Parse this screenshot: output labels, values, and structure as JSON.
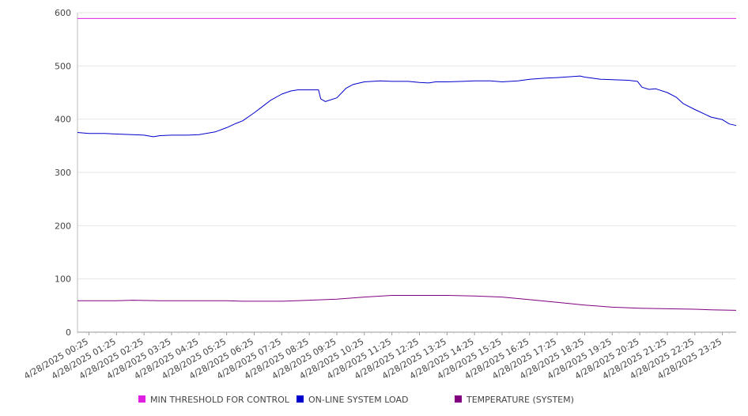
{
  "chart_data": {
    "type": "line",
    "title": "",
    "xlabel": "",
    "ylabel": "",
    "ylim": [
      0,
      600
    ],
    "yticks": [
      0,
      100,
      200,
      300,
      400,
      500,
      600
    ],
    "grid": "horizontal",
    "legend_position": "bottom",
    "x_tick_labels": [
      "4/28/2025 00:25",
      "4/28/2025 01:25",
      "4/28/2025 02:25",
      "4/28/2025 03:25",
      "4/28/2025 04:25",
      "4/28/2025 05:25",
      "4/28/2025 06:25",
      "4/28/2025 07:25",
      "4/28/2025 08:25",
      "4/28/2025 09:25",
      "4/28/2025 10:25",
      "4/28/2025 11:25",
      "4/28/2025 12:25",
      "4/28/2025 13:25",
      "4/28/2025 14:25",
      "4/28/2025 15:25",
      "4/28/2025 16:25",
      "4/28/2025 17:25",
      "4/28/2025 18:25",
      "4/28/2025 19:25",
      "4/28/2025 20:25",
      "4/28/2025 21:25",
      "4/28/2025 22:25",
      "4/28/2025 23:25"
    ],
    "series": [
      {
        "name": "MIN THRESHOLD FOR CONTROL",
        "color": "#e020e0",
        "points": [
          [
            "4/28/2025 00:00",
            589
          ],
          [
            "4/28/2025 23:55",
            589
          ]
        ]
      },
      {
        "name": "ON-LINE SYSTEM LOAD",
        "color": "#0000cc",
        "points": [
          [
            "4/28/2025 00:00",
            375
          ],
          [
            "4/28/2025 00:25",
            373
          ],
          [
            "4/28/2025 01:00",
            373
          ],
          [
            "4/28/2025 01:25",
            372
          ],
          [
            "4/28/2025 02:00",
            371
          ],
          [
            "4/28/2025 02:25",
            370
          ],
          [
            "4/28/2025 02:45",
            367
          ],
          [
            "4/28/2025 03:00",
            369
          ],
          [
            "4/28/2025 03:25",
            370
          ],
          [
            "4/28/2025 04:00",
            370
          ],
          [
            "4/28/2025 04:25",
            371
          ],
          [
            "4/28/2025 05:00",
            376
          ],
          [
            "4/28/2025 05:25",
            384
          ],
          [
            "4/28/2025 05:45",
            392
          ],
          [
            "4/28/2025 06:00",
            397
          ],
          [
            "4/28/2025 06:25",
            412
          ],
          [
            "4/28/2025 06:45",
            425
          ],
          [
            "4/28/2025 07:00",
            435
          ],
          [
            "4/28/2025 07:25",
            447
          ],
          [
            "4/28/2025 07:45",
            453
          ],
          [
            "4/28/2025 08:00",
            455
          ],
          [
            "4/28/2025 08:25",
            455
          ],
          [
            "4/28/2025 08:45",
            455
          ],
          [
            "4/28/2025 08:50",
            438
          ],
          [
            "4/28/2025 09:00",
            433
          ],
          [
            "4/28/2025 09:25",
            440
          ],
          [
            "4/28/2025 09:45",
            458
          ],
          [
            "4/28/2025 10:00",
            465
          ],
          [
            "4/28/2025 10:25",
            470
          ],
          [
            "4/28/2025 11:00",
            472
          ],
          [
            "4/28/2025 11:25",
            471
          ],
          [
            "4/28/2025 12:00",
            471
          ],
          [
            "4/28/2025 12:25",
            469
          ],
          [
            "4/28/2025 12:45",
            468
          ],
          [
            "4/28/2025 13:00",
            470
          ],
          [
            "4/28/2025 13:25",
            470
          ],
          [
            "4/28/2025 14:00",
            471
          ],
          [
            "4/28/2025 14:25",
            472
          ],
          [
            "4/28/2025 15:00",
            472
          ],
          [
            "4/28/2025 15:25",
            470
          ],
          [
            "4/28/2025 16:00",
            472
          ],
          [
            "4/28/2025 16:25",
            475
          ],
          [
            "4/28/2025 17:00",
            477
          ],
          [
            "4/28/2025 17:25",
            478
          ],
          [
            "4/28/2025 18:00",
            480
          ],
          [
            "4/28/2025 18:15",
            481
          ],
          [
            "4/28/2025 18:25",
            479
          ],
          [
            "4/28/2025 19:00",
            475
          ],
          [
            "4/28/2025 19:25",
            474
          ],
          [
            "4/28/2025 20:00",
            473
          ],
          [
            "4/28/2025 20:20",
            471
          ],
          [
            "4/28/2025 20:30",
            460
          ],
          [
            "4/28/2025 20:45",
            456
          ],
          [
            "4/28/2025 21:00",
            457
          ],
          [
            "4/28/2025 21:25",
            450
          ],
          [
            "4/28/2025 21:45",
            441
          ],
          [
            "4/28/2025 22:00",
            429
          ],
          [
            "4/28/2025 22:25",
            418
          ],
          [
            "4/28/2025 22:45",
            410
          ],
          [
            "4/28/2025 23:00",
            404
          ],
          [
            "4/28/2025 23:25",
            399
          ],
          [
            "4/28/2025 23:40",
            391
          ],
          [
            "4/28/2025 23:55",
            388
          ]
        ]
      },
      {
        "name": "TEMPERATURE (SYSTEM)",
        "color": "#800080",
        "points": [
          [
            "4/28/2025 00:00",
            59
          ],
          [
            "4/28/2025 01:25",
            59
          ],
          [
            "4/28/2025 02:00",
            60
          ],
          [
            "4/28/2025 03:00",
            59
          ],
          [
            "4/28/2025 05:25",
            59
          ],
          [
            "4/28/2025 06:00",
            58
          ],
          [
            "4/28/2025 07:25",
            58
          ],
          [
            "4/28/2025 08:25",
            60
          ],
          [
            "4/28/2025 09:25",
            62
          ],
          [
            "4/28/2025 10:25",
            66
          ],
          [
            "4/28/2025 11:25",
            69
          ],
          [
            "4/28/2025 12:25",
            69
          ],
          [
            "4/28/2025 13:25",
            69
          ],
          [
            "4/28/2025 14:25",
            68
          ],
          [
            "4/28/2025 15:25",
            66
          ],
          [
            "4/28/2025 16:25",
            61
          ],
          [
            "4/28/2025 17:25",
            56
          ],
          [
            "4/28/2025 18:25",
            51
          ],
          [
            "4/28/2025 19:25",
            47
          ],
          [
            "4/28/2025 20:25",
            45
          ],
          [
            "4/28/2025 21:25",
            44
          ],
          [
            "4/28/2025 22:25",
            43
          ],
          [
            "4/28/2025 23:00",
            42
          ],
          [
            "4/28/2025 23:55",
            41
          ]
        ]
      }
    ]
  }
}
